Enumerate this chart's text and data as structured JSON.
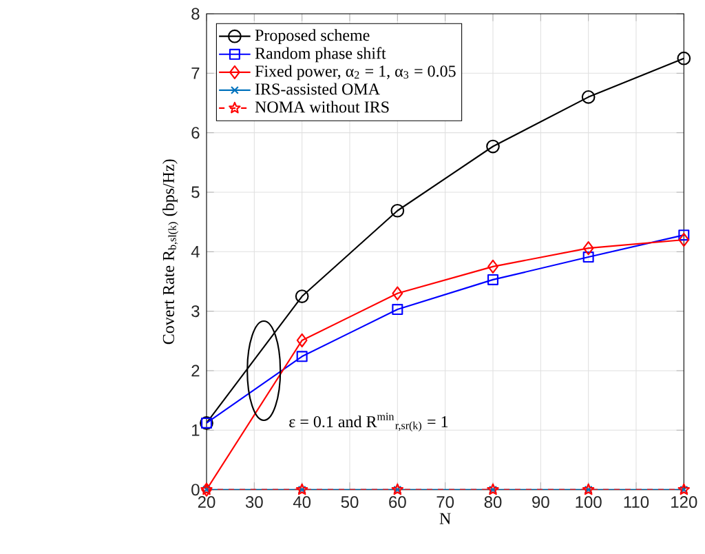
{
  "chart_data": {
    "type": "line",
    "xlabel": "N",
    "ylabel": "Covert Rate R$_{b,sl(k)}$ (bps/Hz)",
    "x": [
      20,
      40,
      60,
      80,
      100,
      120
    ],
    "series": [
      {
        "name": "Proposed scheme",
        "color": "#000000",
        "marker": "circle",
        "values": [
          1.12,
          3.25,
          4.69,
          5.77,
          6.6,
          7.25
        ]
      },
      {
        "name": "Random phase shift",
        "color": "#0000ff",
        "marker": "square",
        "values": [
          1.12,
          2.24,
          3.03,
          3.53,
          3.91,
          4.28
        ]
      },
      {
        "name": "Fixed power, α$_{2}$ = 1, α$_{3}$ = 0.05",
        "color": "#ff0000",
        "marker": "diamond",
        "values": [
          0,
          2.51,
          3.3,
          3.75,
          4.06,
          4.2
        ]
      },
      {
        "name": "IRS-assisted OMA",
        "color": "#0072bd",
        "marker": "cross",
        "values": [
          0,
          0,
          0,
          0,
          0,
          0
        ]
      },
      {
        "name": "NOMA without IRS",
        "color": "#ff0000",
        "marker": "star",
        "line_style": "dashed",
        "values": [
          0,
          0,
          0,
          0,
          0,
          0
        ]
      }
    ],
    "xlim": [
      20,
      120
    ],
    "ylim": [
      0,
      8
    ],
    "xticks": [
      20,
      30,
      40,
      50,
      60,
      70,
      80,
      90,
      100,
      110,
      120
    ],
    "yticks": [
      0,
      1,
      2,
      3,
      4,
      5,
      6,
      7,
      8
    ],
    "grid": true,
    "legend": "top left",
    "annotations": [
      "ε = 0.1 and R$^{min}$$_{r,sr(k)}$ = 1"
    ]
  }
}
